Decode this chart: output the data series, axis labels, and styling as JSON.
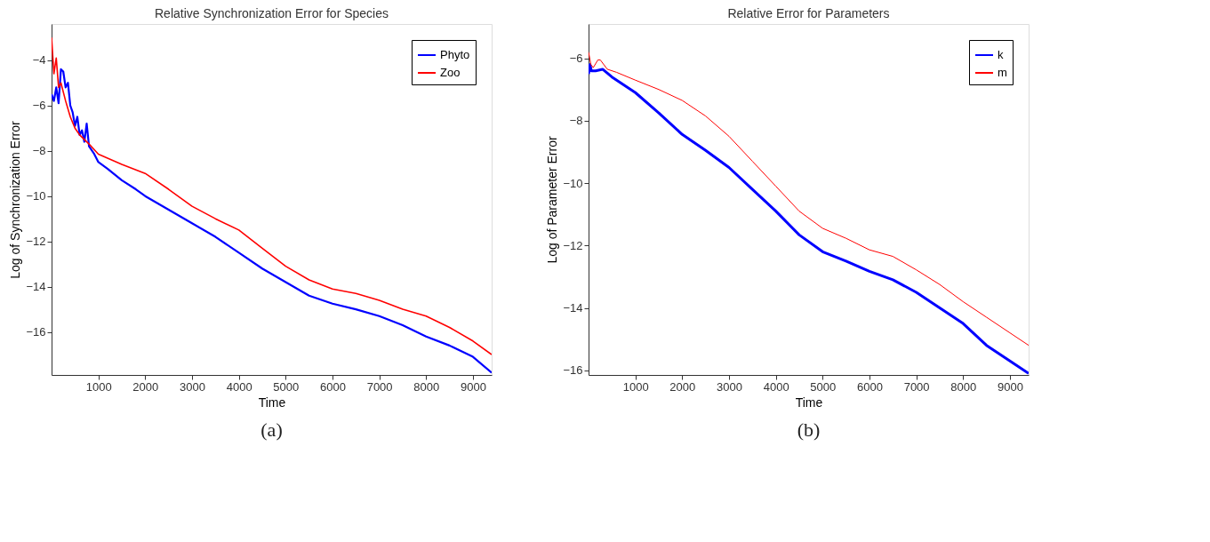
{
  "chart_data": [
    {
      "type": "line",
      "title": "Relative Synchronization Error for Species",
      "xlabel": "Time",
      "ylabel": "Log of Synchronization Error",
      "xlim": [
        0,
        9400
      ],
      "ylim": [
        -17.9,
        -2.4
      ],
      "xticks": [
        1000,
        2000,
        3000,
        4000,
        5000,
        6000,
        7000,
        8000,
        9000
      ],
      "yticks": [
        -16,
        -14,
        -12,
        -10,
        -8,
        -6,
        -4
      ],
      "grid": false,
      "legend": "top right",
      "annotations": [
        "(a)"
      ],
      "series": [
        {
          "name": "Phyto",
          "color": "#0000ff",
          "x": [
            0,
            50,
            100,
            150,
            200,
            250,
            300,
            350,
            400,
            450,
            500,
            550,
            600,
            650,
            700,
            750,
            800,
            900,
            1000,
            1200,
            1500,
            1800,
            2000,
            2500,
            3000,
            3500,
            4000,
            4500,
            5000,
            5500,
            6000,
            6500,
            7000,
            7500,
            8000,
            8500,
            9000,
            9400
          ],
          "values": [
            -5.5,
            -5.8,
            -5.2,
            -5.9,
            -4.4,
            -4.5,
            -5.2,
            -5.0,
            -6.0,
            -6.3,
            -6.9,
            -6.5,
            -7.3,
            -7.1,
            -7.6,
            -6.8,
            -7.8,
            -8.1,
            -8.5,
            -8.8,
            -9.3,
            -9.7,
            -10.0,
            -10.6,
            -11.2,
            -11.8,
            -12.5,
            -13.2,
            -13.8,
            -14.4,
            -14.75,
            -15.0,
            -15.3,
            -15.7,
            -16.2,
            -16.6,
            -17.1,
            -17.8
          ]
        },
        {
          "name": "Zoo",
          "color": "#ff0000",
          "x": [
            0,
            50,
            100,
            150,
            200,
            300,
            400,
            500,
            600,
            800,
            1000,
            1500,
            2000,
            2500,
            3000,
            3500,
            4000,
            4500,
            5000,
            5500,
            6000,
            6500,
            7000,
            7500,
            8000,
            8500,
            9000,
            9400
          ],
          "values": [
            -3.0,
            -4.6,
            -3.9,
            -5.2,
            -5.0,
            -5.8,
            -6.5,
            -7.0,
            -7.3,
            -7.7,
            -8.15,
            -8.6,
            -9.0,
            -9.7,
            -10.45,
            -11.0,
            -11.5,
            -12.3,
            -13.1,
            -13.7,
            -14.1,
            -14.3,
            -14.6,
            -15.0,
            -15.3,
            -15.8,
            -16.4,
            -17.0
          ]
        }
      ]
    },
    {
      "type": "line",
      "title": "Relative Error for Parameters",
      "xlabel": "Time",
      "ylabel": "Log of Parameter Error",
      "xlim": [
        0,
        9400
      ],
      "ylim": [
        -16.15,
        -4.9
      ],
      "xticks": [
        1000,
        2000,
        3000,
        4000,
        5000,
        6000,
        7000,
        8000,
        9000
      ],
      "yticks": [
        -16,
        -14,
        -12,
        -10,
        -8,
        -6
      ],
      "grid": false,
      "legend": "top right",
      "annotations": [
        "(b)"
      ],
      "series": [
        {
          "name": "k",
          "color": "#0000ff",
          "x": [
            0,
            30,
            60,
            150,
            300,
            500,
            1000,
            1500,
            2000,
            2500,
            3000,
            3500,
            4000,
            4500,
            5000,
            5500,
            6000,
            6500,
            7000,
            7500,
            8000,
            8500,
            9000,
            9400
          ],
          "values": [
            -6.5,
            -6.2,
            -6.4,
            -6.4,
            -6.35,
            -6.6,
            -7.1,
            -7.75,
            -8.44,
            -8.95,
            -9.5,
            -10.2,
            -10.9,
            -11.66,
            -12.2,
            -12.5,
            -12.83,
            -13.1,
            -13.5,
            -14.0,
            -14.5,
            -15.2,
            -15.7,
            -16.1
          ]
        },
        {
          "name": "m",
          "color": "#ff0000",
          "x": [
            0,
            50,
            100,
            200,
            250,
            400,
            600,
            1000,
            1500,
            2000,
            2500,
            3000,
            3500,
            4000,
            4500,
            5000,
            5500,
            6000,
            6500,
            7000,
            7500,
            8000,
            8500,
            9000,
            9400
          ],
          "values": [
            -5.8,
            -6.2,
            -6.3,
            -6.05,
            -6.05,
            -6.35,
            -6.45,
            -6.7,
            -7.0,
            -7.35,
            -7.85,
            -8.5,
            -9.3,
            -10.1,
            -10.9,
            -11.45,
            -11.77,
            -12.14,
            -12.35,
            -12.78,
            -13.25,
            -13.8,
            -14.3,
            -14.8,
            -15.2
          ]
        }
      ]
    }
  ]
}
